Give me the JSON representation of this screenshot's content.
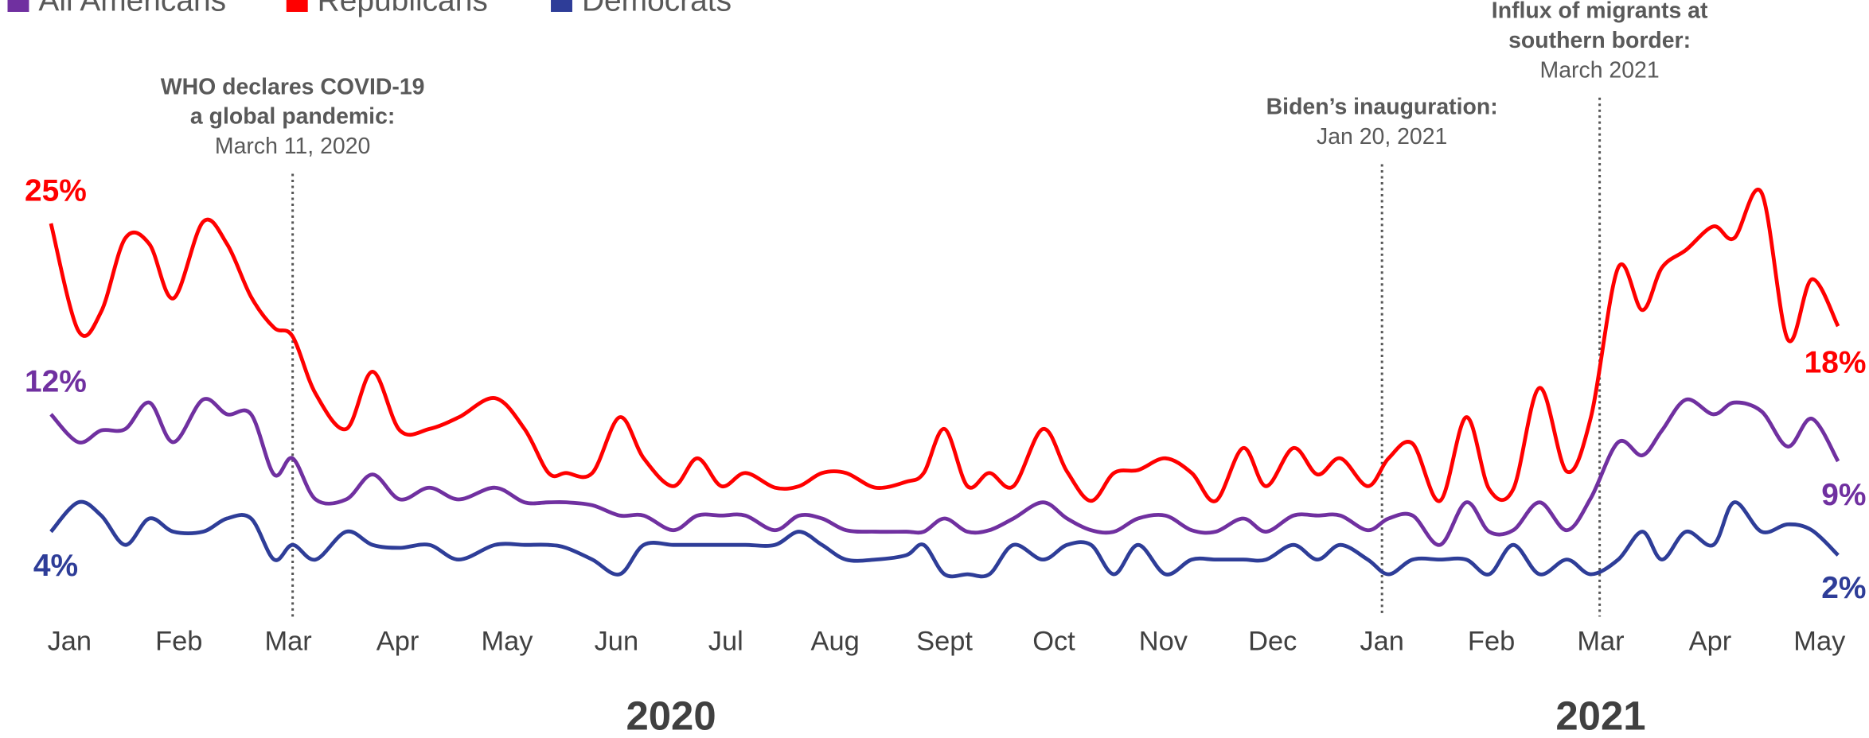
{
  "chart_data": {
    "type": "line",
    "x": [
      -0.17,
      0.08,
      0.29,
      0.51,
      0.73,
      0.95,
      1.22,
      1.44,
      1.66,
      1.87,
      2.04,
      2.25,
      2.53,
      2.77,
      3.02,
      3.29,
      3.56,
      3.89,
      4.16,
      4.38,
      4.54,
      4.78,
      5.03,
      5.25,
      5.52,
      5.74,
      5.96,
      6.18,
      6.45,
      6.67,
      6.88,
      7.1,
      7.37,
      7.65,
      7.81,
      8.0,
      8.21,
      8.41,
      8.63,
      8.9,
      9.12,
      9.34,
      9.55,
      9.77,
      10.02,
      10.26,
      10.48,
      10.73,
      10.94,
      11.19,
      11.41,
      11.62,
      11.87,
      12.06,
      12.28,
      12.53,
      12.77,
      12.98,
      13.2,
      13.44,
      13.69,
      13.91,
      14.16,
      14.38,
      14.56,
      14.78,
      15.03,
      15.22,
      15.47,
      15.71,
      15.93,
      16.17
    ],
    "xlim": [
      -0.2,
      16.2
    ],
    "xticks": [
      {
        "value": 0,
        "label": "Jan"
      },
      {
        "value": 1,
        "label": "Feb"
      },
      {
        "value": 2,
        "label": "Mar"
      },
      {
        "value": 3,
        "label": "Apr"
      },
      {
        "value": 4,
        "label": "May"
      },
      {
        "value": 5,
        "label": "Jun"
      },
      {
        "value": 6,
        "label": "Jul"
      },
      {
        "value": 7,
        "label": "Aug"
      },
      {
        "value": 8,
        "label": "Sept"
      },
      {
        "value": 9,
        "label": "Oct"
      },
      {
        "value": 10,
        "label": "Nov"
      },
      {
        "value": 11,
        "label": "Dec"
      },
      {
        "value": 12,
        "label": "Jan"
      },
      {
        "value": 13,
        "label": "Feb"
      },
      {
        "value": 14,
        "label": "Mar"
      },
      {
        "value": 15,
        "label": "Apr"
      },
      {
        "value": 16,
        "label": "May"
      }
    ],
    "x_groups": [
      {
        "label": "2020",
        "range": [
          0,
          11
        ]
      },
      {
        "label": "2021",
        "range": [
          12,
          16
        ]
      }
    ],
    "ylim": [
      0,
      28
    ],
    "series": [
      {
        "name": "All Americans",
        "color": "#7030a0",
        "values": [
          12.0,
          10.1,
          10.9,
          11.0,
          12.8,
          10.1,
          13.0,
          12.0,
          12.0,
          7.9,
          9.0,
          6.2,
          6.2,
          7.9,
          6.2,
          7.0,
          6.2,
          7.0,
          6.0,
          6.0,
          6.0,
          5.8,
          5.1,
          5.1,
          4.1,
          5.1,
          5.1,
          5.1,
          4.1,
          5.1,
          4.9,
          4.1,
          4.0,
          4.0,
          4.0,
          4.9,
          4.0,
          4.1,
          4.9,
          6.0,
          4.9,
          4.1,
          4.0,
          4.9,
          5.1,
          4.1,
          4.0,
          4.9,
          4.0,
          5.1,
          5.1,
          5.1,
          4.1,
          4.9,
          5.1,
          3.1,
          6.0,
          4.0,
          4.1,
          6.0,
          4.1,
          6.3,
          10.1,
          9.2,
          10.9,
          13.0,
          12.0,
          12.8,
          12.2,
          9.8,
          11.7,
          8.8
        ],
        "value_labels": [
          "12%",
          null,
          null,
          null,
          null,
          null,
          null,
          null,
          null,
          null,
          null,
          null,
          null,
          null,
          null,
          null,
          null,
          null,
          null,
          null,
          null,
          null,
          null,
          null,
          null,
          null,
          null,
          null,
          null,
          null,
          null,
          null,
          null,
          null,
          null,
          null,
          null,
          null,
          null,
          null,
          null,
          null,
          null,
          null,
          null,
          null,
          null,
          null,
          null,
          null,
          null,
          null,
          null,
          null,
          null,
          null,
          null,
          null,
          null,
          null,
          null,
          null,
          null,
          null,
          null,
          null,
          null,
          null,
          null,
          null,
          null,
          "9%"
        ]
      },
      {
        "name": "Republicans",
        "color": "#ff0000",
        "values": [
          25.0,
          17.7,
          19.0,
          24.0,
          23.6,
          19.9,
          25.1,
          23.6,
          20.0,
          17.9,
          17.3,
          13.4,
          11.0,
          14.9,
          10.9,
          11.0,
          11.8,
          13.1,
          11.0,
          8.0,
          8.0,
          8.0,
          11.8,
          9.0,
          7.1,
          9.0,
          7.1,
          8.0,
          7.0,
          7.1,
          8.0,
          8.0,
          7.0,
          7.4,
          8.0,
          11.0,
          7.1,
          8.0,
          7.1,
          11.0,
          8.1,
          6.1,
          8.0,
          8.2,
          9.0,
          8.0,
          6.1,
          9.7,
          7.1,
          9.7,
          7.9,
          9.0,
          7.1,
          9.0,
          10.0,
          6.1,
          11.8,
          6.9,
          6.9,
          13.8,
          8.1,
          11.8,
          22.0,
          19.1,
          22.0,
          23.2,
          24.8,
          24.0,
          27.1,
          17.1,
          21.2,
          18.0
        ],
        "value_labels": [
          "25%",
          null,
          null,
          null,
          null,
          null,
          null,
          null,
          null,
          null,
          null,
          null,
          null,
          null,
          null,
          null,
          null,
          null,
          null,
          null,
          null,
          null,
          null,
          null,
          null,
          null,
          null,
          null,
          null,
          null,
          null,
          null,
          null,
          null,
          null,
          null,
          null,
          null,
          null,
          null,
          null,
          null,
          null,
          null,
          null,
          null,
          null,
          null,
          null,
          null,
          null,
          null,
          null,
          null,
          null,
          null,
          null,
          null,
          null,
          null,
          null,
          null,
          null,
          null,
          null,
          null,
          null,
          null,
          null,
          null,
          null,
          "18%"
        ]
      },
      {
        "name": "Democrats",
        "color": "#2e3d98",
        "values": [
          4.0,
          6.0,
          5.1,
          3.1,
          4.9,
          4.0,
          4.0,
          4.9,
          4.9,
          2.1,
          3.1,
          2.1,
          4.0,
          3.1,
          2.9,
          3.1,
          2.1,
          3.1,
          3.1,
          3.1,
          2.9,
          2.1,
          1.1,
          3.1,
          3.1,
          3.1,
          3.1,
          3.1,
          3.1,
          4.0,
          3.1,
          2.1,
          2.1,
          2.4,
          3.1,
          1.1,
          1.1,
          1.1,
          3.1,
          2.1,
          3.1,
          3.1,
          1.1,
          3.1,
          1.1,
          2.1,
          2.1,
          2.1,
          2.1,
          3.1,
          2.1,
          3.1,
          2.1,
          1.1,
          2.1,
          2.1,
          2.1,
          1.1,
          3.1,
          1.1,
          2.1,
          1.1,
          2.1,
          4.0,
          2.1,
          4.0,
          3.1,
          6.0,
          4.0,
          4.5,
          4.1,
          2.4
        ],
        "value_labels": [
          "4%",
          null,
          null,
          null,
          null,
          null,
          null,
          null,
          null,
          null,
          null,
          null,
          null,
          null,
          null,
          null,
          null,
          null,
          null,
          null,
          null,
          null,
          null,
          null,
          null,
          null,
          null,
          null,
          null,
          null,
          null,
          null,
          null,
          null,
          null,
          null,
          null,
          null,
          null,
          null,
          null,
          null,
          null,
          null,
          null,
          null,
          null,
          null,
          null,
          null,
          null,
          null,
          null,
          null,
          null,
          null,
          null,
          null,
          null,
          null,
          null,
          null,
          null,
          null,
          null,
          null,
          null,
          null,
          null,
          null,
          null,
          "2%"
        ]
      }
    ],
    "annotations": [
      {
        "x": 2.04,
        "bold": [
          "WHO declares COVID-19",
          "a global pandemic:"
        ],
        "text": "March 11, 2020"
      },
      {
        "x": 12.0,
        "bold": [
          "Biden’s inauguration:"
        ],
        "text": "Jan 20, 2021"
      },
      {
        "x": 13.99,
        "bold": [
          "Influx of migrants at",
          "southern border:"
        ],
        "text": "March 2021"
      }
    ],
    "legend": "top-left"
  }
}
